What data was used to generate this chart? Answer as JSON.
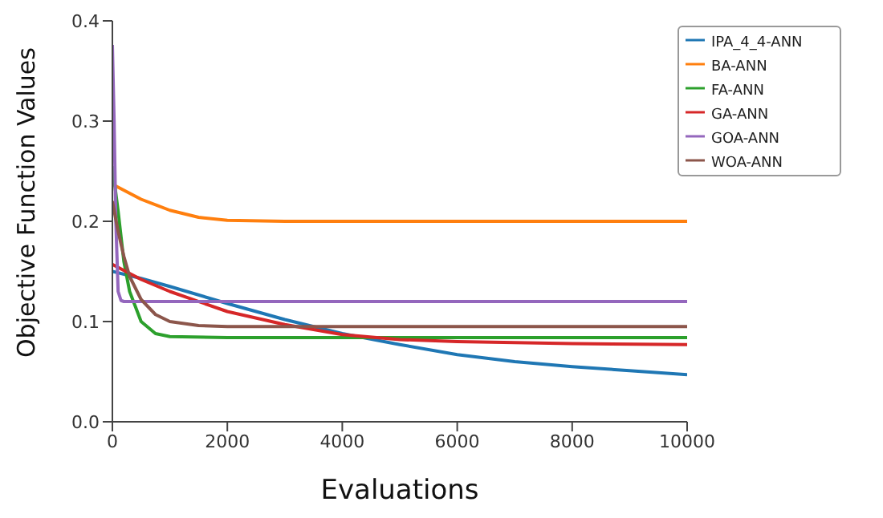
{
  "chart_data": {
    "type": "line",
    "xlabel": "Evaluations",
    "ylabel": "Objective Function Values",
    "xlim": [
      0,
      10000
    ],
    "ylim": [
      0,
      0.4
    ],
    "xticks": [
      0,
      2000,
      4000,
      6000,
      8000,
      10000
    ],
    "yticks": [
      {
        "value": 0,
        "label": "0.0"
      },
      {
        "value": 0.1,
        "label": "0.1"
      },
      {
        "value": 0.2,
        "label": "0.2"
      },
      {
        "value": 0.3,
        "label": "0.3"
      },
      {
        "value": 0.4,
        "label": "0.4"
      }
    ],
    "grid": false,
    "legend": "top right",
    "marker": "none",
    "line_style": "solid",
    "series": [
      {
        "name": "IPA_4_4-ANN",
        "color": "#1f77b4",
        "x": [
          0,
          500,
          1000,
          2000,
          3000,
          4000,
          5000,
          6000,
          7000,
          8000,
          9000,
          10000
        ],
        "values": [
          0.15,
          0.143,
          0.135,
          0.118,
          0.102,
          0.088,
          0.077,
          0.067,
          0.06,
          0.055,
          0.051,
          0.047
        ]
      },
      {
        "name": "BA-ANN",
        "color": "#ff7f0e",
        "x": [
          0,
          500,
          1000,
          1500,
          2000,
          3000,
          10000
        ],
        "values": [
          0.237,
          0.222,
          0.211,
          0.204,
          0.201,
          0.2,
          0.2
        ]
      },
      {
        "name": "FA-ANN",
        "color": "#2ca02c",
        "x": [
          0,
          100,
          200,
          300,
          500,
          750,
          1000,
          2000,
          10000
        ],
        "values": [
          0.255,
          0.21,
          0.16,
          0.13,
          0.1,
          0.088,
          0.085,
          0.084,
          0.084
        ]
      },
      {
        "name": "GA-ANN",
        "color": "#d62728",
        "x": [
          0,
          500,
          1000,
          2000,
          3000,
          4000,
          5000,
          6000,
          8000,
          10000
        ],
        "values": [
          0.157,
          0.142,
          0.13,
          0.11,
          0.097,
          0.087,
          0.082,
          0.08,
          0.078,
          0.077
        ]
      },
      {
        "name": "GOA-ANN",
        "color": "#9467bd",
        "x": [
          0,
          30,
          60,
          100,
          150,
          200,
          10000
        ],
        "values": [
          0.376,
          0.3,
          0.2,
          0.13,
          0.121,
          0.12,
          0.12
        ]
      },
      {
        "name": "WOA-ANN",
        "color": "#8c564b",
        "x": [
          0,
          100,
          200,
          300,
          500,
          750,
          1000,
          1500,
          2000,
          10000
        ],
        "values": [
          0.22,
          0.19,
          0.165,
          0.145,
          0.122,
          0.107,
          0.1,
          0.096,
          0.095,
          0.095
        ]
      }
    ]
  }
}
